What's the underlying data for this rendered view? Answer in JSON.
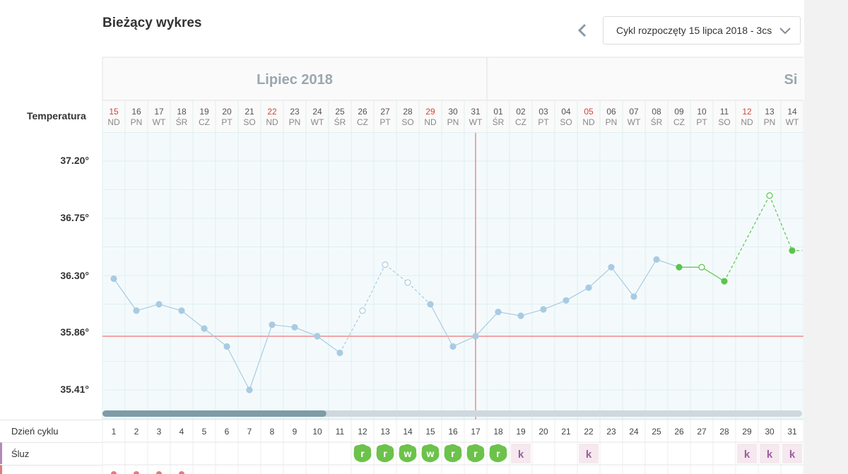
{
  "header": {
    "title": "Bieżący wykres",
    "cycle_select": "Cykl rozpoczęty 15 lipca 2018 - 3cs"
  },
  "chart": {
    "temp_heading": "Temperatura",
    "months": [
      {
        "label": "Lipiec 2018",
        "start_day": 1,
        "end_day": 17
      },
      {
        "label": "Si",
        "start_day": 18,
        "end_day": 31
      }
    ]
  },
  "chart_data": {
    "type": "line",
    "ylabel": "Temperatura",
    "ylim": [
      35.37,
      37.41
    ],
    "y_ticks": [
      "37.20°",
      "36.75°",
      "36.30°",
      "35.86°",
      "35.41°"
    ],
    "y_tick_values": [
      37.2,
      36.75,
      36.3,
      35.86,
      35.41
    ],
    "x": [
      1,
      2,
      3,
      4,
      5,
      6,
      7,
      8,
      9,
      10,
      11,
      12,
      13,
      14,
      15,
      16,
      17,
      18,
      19,
      20,
      21,
      22,
      23,
      24,
      25,
      26,
      27,
      28,
      29,
      30,
      31
    ],
    "dates": [
      "15",
      "16",
      "17",
      "18",
      "19",
      "20",
      "21",
      "22",
      "23",
      "24",
      "25",
      "26",
      "27",
      "28",
      "29",
      "30",
      "31",
      "01",
      "02",
      "03",
      "04",
      "05",
      "06",
      "07",
      "08",
      "09",
      "10",
      "11",
      "12",
      "13",
      "14"
    ],
    "weekdays": [
      "ND",
      "PN",
      "WT",
      "ŚR",
      "CZ",
      "PT",
      "SO",
      "ND",
      "PN",
      "WT",
      "ŚR",
      "CZ",
      "PT",
      "SO",
      "ND",
      "PN",
      "WT",
      "ŚR",
      "CZ",
      "PT",
      "SO",
      "ND",
      "PN",
      "WT",
      "ŚR",
      "CZ",
      "PT",
      "SO",
      "ND",
      "PN",
      "WT"
    ],
    "sundays": [
      1,
      8,
      15,
      22,
      29
    ],
    "series": [
      {
        "values": [
          36.28,
          36.03,
          36.08,
          36.03,
          35.89,
          35.75,
          35.41,
          35.92,
          35.9,
          35.83,
          35.7,
          36.03,
          36.39,
          36.25,
          36.08,
          35.75,
          35.83,
          36.02,
          35.99,
          36.04,
          36.11,
          36.21,
          36.37,
          36.14,
          36.43,
          36.37,
          36.37,
          36.26,
          null,
          36.93,
          36.5
        ],
        "open_points": [
          12,
          13,
          14,
          27,
          30
        ],
        "dashed_segments_from": [
          11,
          12,
          13,
          14,
          28,
          29,
          30
        ],
        "color_blue": "#a9cbe2",
        "color_green": "#5cc44e",
        "green_from_day": 26
      }
    ],
    "coverline": 35.83,
    "vline_day": 17,
    "coverline_color": "#f08a8a",
    "scrollbar_fraction": 0.32
  },
  "rows": {
    "cycle_day_label": "Dzień cyklu",
    "cycle_days": [
      "1",
      "2",
      "3",
      "4",
      "5",
      "6",
      "7",
      "8",
      "9",
      "10",
      "11",
      "12",
      "13",
      "14",
      "15",
      "16",
      "17",
      "18",
      "19",
      "20",
      "21",
      "22",
      "23",
      "24",
      "25",
      "26",
      "27",
      "28",
      "29",
      "30",
      "31"
    ],
    "sluz_label": "Śluz",
    "sluz": [
      "",
      "",
      "",
      "",
      "",
      "",
      "",
      "",
      "",
      "",
      "",
      "r",
      "r",
      "w",
      "w",
      "r",
      "r",
      "r",
      "k",
      "",
      "",
      "k",
      "",
      "",
      "",
      "",
      "",
      "",
      "k",
      "k",
      "k"
    ],
    "sluz_green": "#6cc24a",
    "sluz_k_color": "#9b5f9e",
    "sluz_k_bg": "#f5e8ee"
  }
}
